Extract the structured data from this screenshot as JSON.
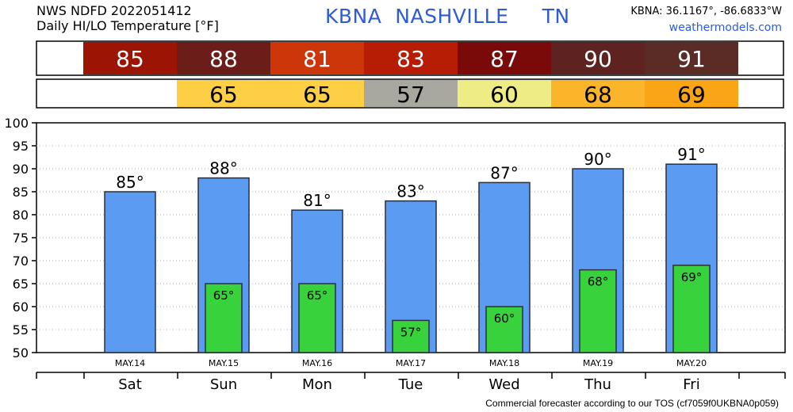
{
  "header": {
    "line1": "NWS NDFD 2022051412",
    "line2": "Daily HI/LO Temperature [°F]",
    "station": "KBNA",
    "city": "NASHVILLE",
    "state": "TN",
    "coords": "KBNA: 36.1167°, -86.6833°W",
    "site": "weathermodels.com"
  },
  "footer": "Commercial forecaster according to our TOS (cf7059f0UKBNA0p059)",
  "hi_strip_colors": [
    "#9c1404",
    "#6b1d1a",
    "#cc3608",
    "#b61d04",
    "#7a0a0a",
    "#5e2320",
    "#5b2b25"
  ],
  "lo_strip_colors": [
    "#ffffff",
    "#fdcf45",
    "#fdcf45",
    "#a8a8a0",
    "#eeec85",
    "#fbb52b",
    "#faa515"
  ],
  "bar_colors": {
    "high": "#5b9bf2",
    "low": "#38d23c",
    "outline": "#2a2f3d"
  },
  "chart_data": {
    "type": "bar",
    "categories": [
      "Sat",
      "Sun",
      "Mon",
      "Tue",
      "Wed",
      "Thu",
      "Fri"
    ],
    "dates": [
      "MAY.14",
      "MAY.15",
      "MAY.16",
      "MAY.17",
      "MAY.18",
      "MAY.19",
      "MAY.20"
    ],
    "series": [
      {
        "name": "HI",
        "values": [
          85,
          88,
          81,
          83,
          87,
          90,
          91
        ]
      },
      {
        "name": "LO",
        "values": [
          null,
          65,
          65,
          57,
          60,
          68,
          69
        ]
      }
    ],
    "hi_labels": [
      "85°",
      "88°",
      "81°",
      "83°",
      "87°",
      "90°",
      "91°"
    ],
    "lo_labels": [
      "",
      "65°",
      "65°",
      "57°",
      "60°",
      "68°",
      "69°"
    ],
    "hi_strip_labels": [
      "85",
      "88",
      "81",
      "83",
      "87",
      "90",
      "91"
    ],
    "lo_strip_labels": [
      "",
      "65",
      "65",
      "57",
      "60",
      "68",
      "69"
    ],
    "yticks": [
      "50",
      "55",
      "60",
      "65",
      "70",
      "75",
      "80",
      "85",
      "90",
      "95",
      "100"
    ],
    "ylim": [
      50,
      100
    ],
    "grid": true
  }
}
